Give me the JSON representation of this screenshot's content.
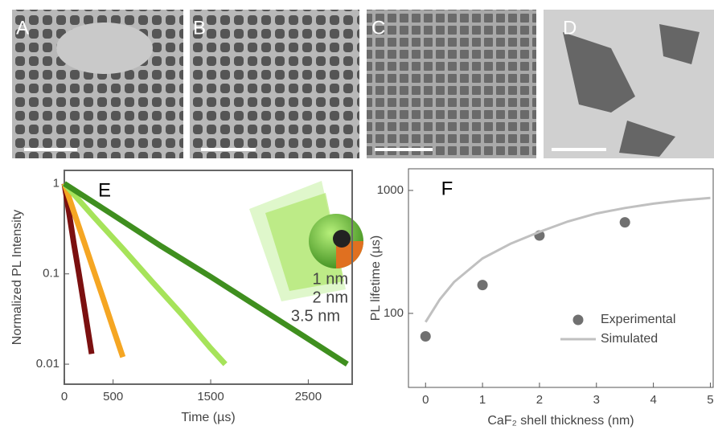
{
  "panels": [
    {
      "label": "A"
    },
    {
      "label": "B"
    },
    {
      "label": "C"
    },
    {
      "label": "D"
    }
  ],
  "chart_data": [
    {
      "type": "line",
      "title": "E",
      "xlabel": "Time (µs)",
      "ylabel": "Normalized PL Intensity",
      "xlim": [
        0,
        2950
      ],
      "ylim": [
        0.006,
        1.4
      ],
      "ylog": true,
      "xticks": [
        0,
        500,
        1500,
        2500
      ],
      "yticks": [
        1,
        0.1,
        0.01
      ],
      "annotations": [
        "1 nm",
        "2 nm",
        "3.5 nm"
      ],
      "series": [
        {
          "color": "#7b1010",
          "x": [
            0,
            50,
            100,
            150,
            200,
            250,
            280
          ],
          "values": [
            1,
            0.46,
            0.21,
            0.1,
            0.046,
            0.021,
            0.013
          ]
        },
        {
          "color": "#f5a623",
          "x": [
            0,
            100,
            200,
            300,
            400,
            500,
            600
          ],
          "values": [
            1,
            0.48,
            0.23,
            0.11,
            0.053,
            0.025,
            0.012
          ]
        },
        {
          "color": "#a6e35a",
          "x": [
            0,
            300,
            600,
            900,
            1200,
            1500,
            1650
          ],
          "values": [
            1,
            0.43,
            0.19,
            0.082,
            0.036,
            0.015,
            0.01
          ]
        },
        {
          "color": "#3f8f1f",
          "x": [
            0,
            500,
            1000,
            1500,
            2000,
            2500,
            2900
          ],
          "values": [
            1,
            0.45,
            0.2,
            0.093,
            0.042,
            0.019,
            0.01
          ]
        }
      ]
    },
    {
      "type": "scatter",
      "title": "F",
      "xlabel": "CaF₂ shell thickness (nm)",
      "ylabel": "PL lifetime (µs)",
      "xlim": [
        -0.3,
        5.05
      ],
      "ylim": [
        25,
        1500
      ],
      "ylog": true,
      "xticks": [
        0,
        1,
        2,
        3,
        4,
        5
      ],
      "yticks": [
        100,
        1000
      ],
      "legend": "center-right",
      "series": [
        {
          "name": "Experimental",
          "style": "marker",
          "color": "#707070",
          "x": [
            0,
            1,
            2,
            3.5
          ],
          "values": [
            65,
            170,
            430,
            550
          ]
        },
        {
          "name": "Simulated",
          "style": "line",
          "color": "#c0c0c0",
          "x": [
            0,
            0.25,
            0.5,
            1,
            1.5,
            2,
            2.5,
            3,
            3.5,
            4,
            4.5,
            5
          ],
          "values": [
            85,
            130,
            180,
            280,
            370,
            460,
            560,
            650,
            720,
            780,
            830,
            870
          ]
        }
      ]
    }
  ]
}
